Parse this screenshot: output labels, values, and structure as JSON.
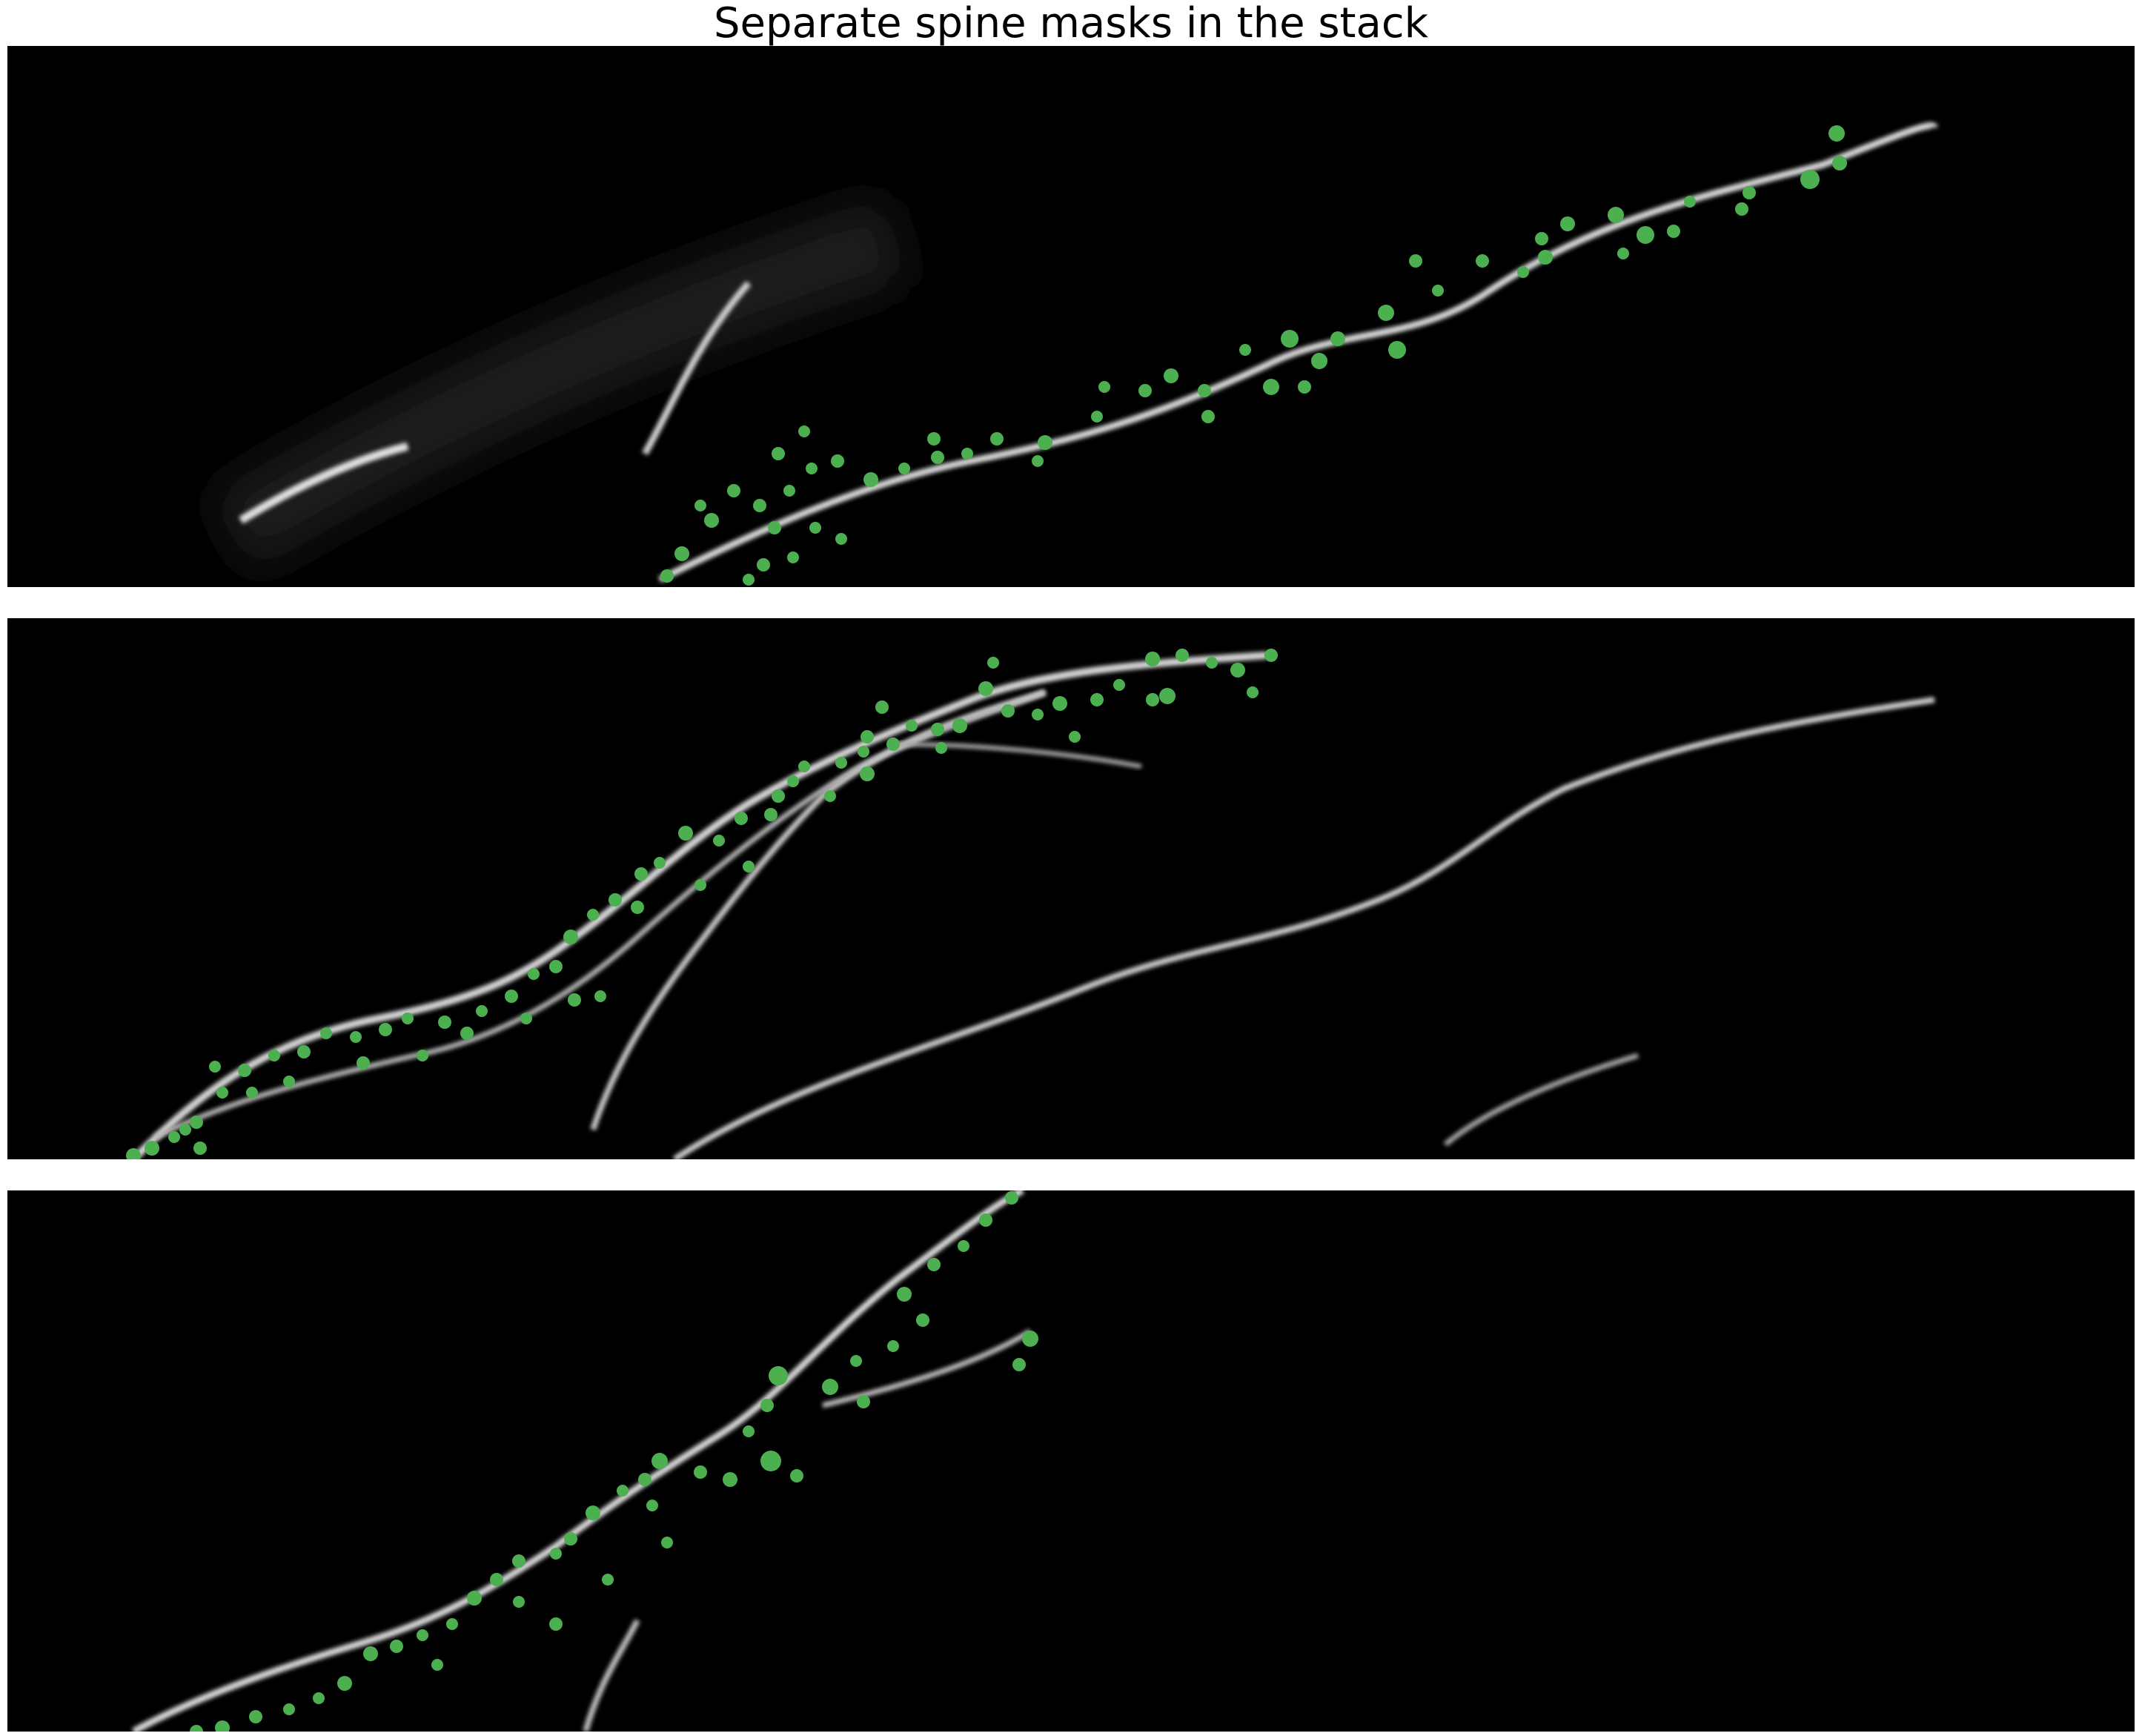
{
  "figure": {
    "title": "Separate spine masks in the stack",
    "mask_color": "#4caf50",
    "dendrite_color": "#e6e6e6",
    "background_color": "#000000"
  },
  "panels": [
    {
      "name": "stack-slice-1",
      "mask_count": 56
    },
    {
      "name": "stack-slice-2",
      "mask_count": 70
    },
    {
      "name": "stack-slice-3",
      "mask_count": 44
    }
  ]
}
